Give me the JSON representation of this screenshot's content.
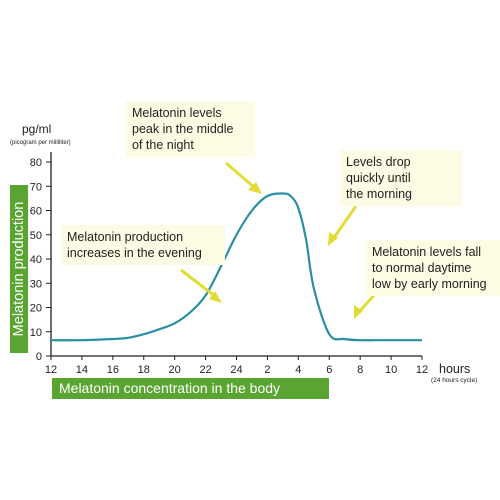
{
  "chart_data": {
    "type": "line",
    "title": "",
    "y_unit": "pg/ml",
    "y_unit_sub": "(picogram per milliliter)",
    "x_unit": "hours",
    "x_unit_sub": "(24 hours cycle)",
    "ylabel": "Melatonin production",
    "xlabel": "Melatonin concentration in the body",
    "ylim": [
      0,
      80
    ],
    "yticks": [
      0,
      10,
      20,
      30,
      40,
      50,
      60,
      70,
      80
    ],
    "xticks": [
      "12",
      "14",
      "16",
      "18",
      "20",
      "22",
      "24",
      "2",
      "4",
      "6",
      "8",
      "10",
      "12"
    ],
    "grid": false,
    "series": [
      {
        "x": [
          0,
          2,
          4,
          5,
          6,
          7,
          8,
          9,
          10,
          11,
          12,
          13,
          14,
          15,
          15.5,
          16,
          16.5,
          17,
          18,
          19,
          20,
          21,
          22,
          23,
          24
        ],
        "values": [
          6.5,
          6.5,
          7,
          7.5,
          9,
          11,
          13.5,
          18,
          25,
          37,
          50,
          60,
          66,
          67,
          66,
          61,
          48,
          28,
          9,
          7,
          6.5,
          6.5,
          6.5,
          6.5,
          6.5
        ]
      }
    ],
    "annotations": [
      "Melatonin levels\npeak in the middle\nof the night",
      "Levels drop\nquickly until\nthe morning",
      "Melatonin production\nincreases in the evening",
      "Melatonin levels fall\nto normal daytime\nlow by early morning"
    ]
  },
  "colors": {
    "line": "#2a8fa3",
    "axis": "#222222",
    "arrow": "#e1dc36",
    "callout_bg": "#fcfbe3",
    "label_bg": "#5aa531"
  }
}
